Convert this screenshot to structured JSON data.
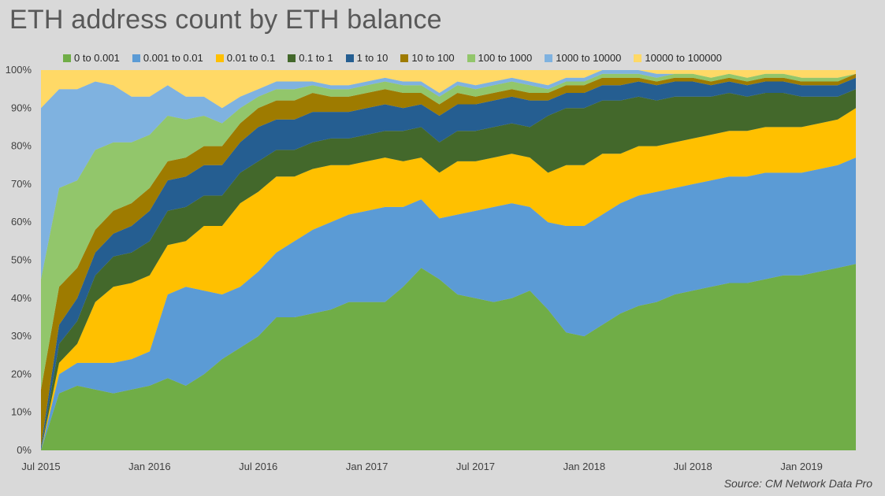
{
  "title": "ETH address count by ETH balance",
  "source": "Source: CM Network Data Pro",
  "chart_data": {
    "type": "area",
    "stacked": true,
    "normalized": true,
    "ylim": [
      0,
      100
    ],
    "y_ticks": [
      "0%",
      "10%",
      "20%",
      "30%",
      "40%",
      "50%",
      "60%",
      "70%",
      "80%",
      "90%",
      "100%"
    ],
    "x_ticks": [
      "Jul 2015",
      "Jan 2016",
      "Jul 2016",
      "Jan 2017",
      "Jul 2017",
      "Jan 2018",
      "Jul 2018",
      "Jan 2019"
    ],
    "x": [
      "2015-07",
      "2015-08",
      "2015-09",
      "2015-10",
      "2015-11",
      "2015-12",
      "2016-01",
      "2016-02",
      "2016-03",
      "2016-04",
      "2016-05",
      "2016-06",
      "2016-07",
      "2016-08",
      "2016-09",
      "2016-10",
      "2016-11",
      "2016-12",
      "2017-01",
      "2017-02",
      "2017-03",
      "2017-04",
      "2017-05",
      "2017-06",
      "2017-07",
      "2017-08",
      "2017-09",
      "2017-10",
      "2017-11",
      "2017-12",
      "2018-01",
      "2018-02",
      "2018-03",
      "2018-04",
      "2018-05",
      "2018-06",
      "2018-07",
      "2018-08",
      "2018-09",
      "2018-10",
      "2018-11",
      "2018-12",
      "2019-01",
      "2019-02",
      "2019-03",
      "2019-04"
    ],
    "grid": false,
    "legend_position": "top",
    "series": [
      {
        "name": "0 to 0.001",
        "color": "#70ad47",
        "values": [
          0,
          15,
          17,
          16,
          15,
          16,
          17,
          19,
          17,
          20,
          24,
          27,
          30,
          35,
          35,
          36,
          37,
          39,
          39,
          39,
          43,
          48,
          45,
          41,
          40,
          39,
          40,
          42,
          37,
          31,
          30,
          33,
          36,
          38,
          39,
          41,
          42,
          43,
          44,
          44,
          45,
          46,
          46,
          47,
          48,
          49
        ]
      },
      {
        "name": "0.001 to 0.01",
        "color": "#5b9bd5",
        "values": [
          0,
          5,
          6,
          7,
          8,
          8,
          9,
          22,
          26,
          22,
          17,
          16,
          17,
          17,
          20,
          22,
          23,
          23,
          24,
          25,
          21,
          18,
          16,
          21,
          23,
          25,
          25,
          22,
          23,
          28,
          29,
          29,
          29,
          29,
          29,
          28,
          28,
          28,
          28,
          28,
          28,
          27,
          27,
          27,
          27,
          28
        ]
      },
      {
        "name": "0.01 to 0.1",
        "color": "#ffc000",
        "values": [
          0,
          3,
          5,
          16,
          20,
          20,
          20,
          13,
          12,
          17,
          18,
          22,
          21,
          20,
          17,
          16,
          15,
          13,
          13,
          13,
          12,
          11,
          12,
          14,
          13,
          13,
          13,
          13,
          13,
          16,
          16,
          16,
          13,
          13,
          12,
          12,
          12,
          12,
          12,
          12,
          12,
          12,
          12,
          12,
          12,
          13
        ]
      },
      {
        "name": "0.1 to 1",
        "color": "#43682b",
        "values": [
          0,
          5,
          6,
          7,
          8,
          8,
          9,
          9,
          9,
          8,
          8,
          8,
          8,
          7,
          7,
          7,
          7,
          7,
          7,
          7,
          8,
          8,
          8,
          8,
          8,
          8,
          8,
          8,
          15,
          15,
          15,
          14,
          14,
          13,
          12,
          12,
          11,
          10,
          10,
          9,
          9,
          9,
          8,
          7,
          6,
          5
        ]
      },
      {
        "name": "1 to 10",
        "color": "#255e91",
        "values": [
          1,
          5,
          6,
          6,
          6,
          7,
          8,
          8,
          8,
          8,
          8,
          8,
          9,
          8,
          8,
          8,
          7,
          7,
          7,
          7,
          6,
          6,
          7,
          7,
          7,
          7,
          7,
          7,
          4,
          4,
          4,
          4,
          4,
          4,
          4,
          4,
          4,
          3,
          3,
          3,
          3,
          3,
          3,
          3,
          3,
          3
        ]
      },
      {
        "name": "10 to 100",
        "color": "#9e7b00",
        "values": [
          15,
          10,
          8,
          6,
          6,
          6,
          6,
          5,
          5,
          5,
          5,
          5,
          5,
          5,
          5,
          5,
          4,
          4,
          4,
          4,
          4,
          3,
          3,
          3,
          2,
          2,
          2,
          2,
          2,
          2,
          2,
          2,
          2,
          1,
          1,
          1,
          1,
          1,
          1,
          1,
          1,
          1,
          1,
          1,
          1,
          1
        ]
      },
      {
        "name": "100 to 1000",
        "color": "#92c66b",
        "values": [
          29,
          26,
          23,
          21,
          18,
          16,
          14,
          12,
          10,
          8,
          6,
          4,
          3,
          3,
          3,
          2,
          2,
          2,
          2,
          2,
          2,
          2,
          2,
          2,
          2,
          2,
          2,
          2,
          1,
          1,
          1,
          1,
          1,
          1,
          1,
          1,
          1,
          1,
          1,
          1,
          1,
          1,
          1,
          1,
          1,
          0
        ]
      },
      {
        "name": "1000 to 10000",
        "color": "#7fb2e0",
        "values": [
          45,
          26,
          24,
          18,
          15,
          12,
          10,
          8,
          6,
          5,
          4,
          3,
          2,
          2,
          2,
          1,
          1,
          1,
          1,
          1,
          1,
          1,
          1,
          1,
          1,
          1,
          1,
          1,
          1,
          1,
          1,
          1,
          1,
          1,
          1,
          0,
          0,
          0,
          0,
          0,
          0,
          0,
          0,
          0,
          0,
          0
        ]
      },
      {
        "name": "10000 to 100000",
        "color": "#ffd966",
        "values": [
          10,
          5,
          5,
          3,
          4,
          7,
          7,
          4,
          7,
          7,
          10,
          7,
          5,
          3,
          3,
          3,
          4,
          4,
          3,
          2,
          3,
          3,
          6,
          3,
          4,
          3,
          2,
          3,
          4,
          2,
          2,
          0,
          0,
          0,
          1,
          1,
          1,
          2,
          1,
          2,
          1,
          1,
          2,
          2,
          2,
          1
        ]
      }
    ]
  }
}
